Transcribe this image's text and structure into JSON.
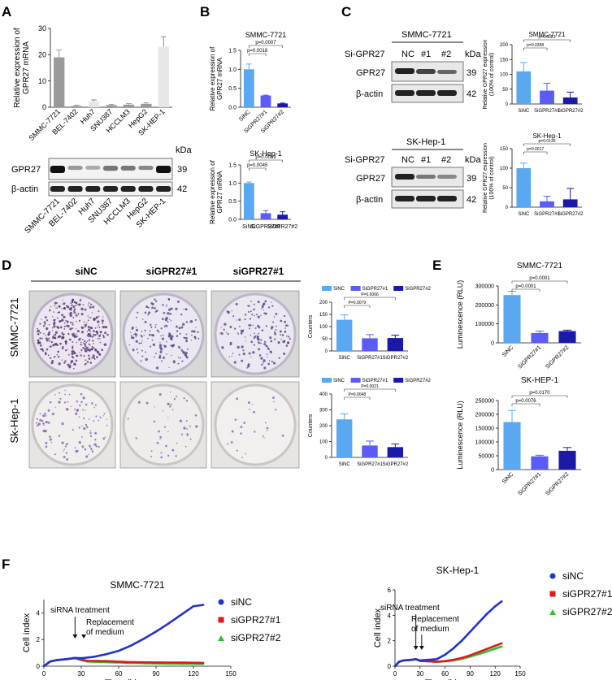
{
  "panel_letters": {
    "A": "A",
    "B": "B",
    "C": "C",
    "D": "D",
    "E": "E",
    "F": "F"
  },
  "colors": {
    "sinc": "#5aa8f0",
    "si1": "#5b5bf5",
    "si2": "#1a1aa6",
    "gray": "#9a9a9a",
    "light": "#e6e6e6",
    "f_sinc": "#2233cc",
    "f_si1": "#dd1b1b",
    "f_si2": "#2fbf2f"
  },
  "panel_a": {
    "blot": {
      "kda_label": "kDa",
      "rows": [
        {
          "name": "GPR27",
          "kda": "39"
        },
        {
          "name": "β-actin",
          "kda": "42"
        }
      ]
    }
  },
  "panel_b_blot_free": {},
  "panel_c": {
    "blots": [
      {
        "cell": "SMMC-7721",
        "si_label": "Si-GPR27",
        "lanes": [
          "NC",
          "#1",
          "#2"
        ],
        "kda_label": "kDa",
        "rows": [
          {
            "name": "GPR27",
            "kda": "39"
          },
          {
            "name": "β-actin",
            "kda": "42"
          }
        ]
      },
      {
        "cell": "SK-Hep-1",
        "si_label": "Si-GPR27",
        "lanes": [
          "NC",
          "#1",
          "#2"
        ],
        "kda_label": "kDa",
        "rows": [
          {
            "name": "GPR27",
            "kda": "39"
          },
          {
            "name": "β-actin",
            "kda": "42"
          }
        ]
      }
    ]
  },
  "panel_d": {
    "column_labels": [
      "siNC",
      "siGPR27#1",
      "siGPR27#1"
    ],
    "row_labels": [
      "SMMC-7721",
      "Sk-Hep-1"
    ]
  },
  "panel_f_annotations": {
    "treatment": "siRNA treatment",
    "replacement_1": "Replacement",
    "replacement_2": "of medium"
  },
  "chart_data": [
    {
      "id": "A",
      "type": "bar",
      "ylabel": "Relative expression of GPR27 mRNA",
      "ylim": [
        0,
        30
      ],
      "yticks": [
        0,
        10,
        20,
        30
      ],
      "categories": [
        "SMMC-7721",
        "BEL-7402",
        "Huh7",
        "SNU387",
        "HCCLM3",
        "HepG2",
        "SK-HEP-1"
      ],
      "values": [
        19,
        0.5,
        2.2,
        0.8,
        1.0,
        1.3,
        23
      ],
      "errors": [
        2.8,
        0.3,
        0.6,
        0.3,
        0.4,
        0.4,
        3.8
      ],
      "bar_colors": [
        "gray",
        "gray",
        "light",
        "gray",
        "gray",
        "gray",
        "light"
      ]
    },
    {
      "id": "B1",
      "type": "bar",
      "title": "SMMC-7721",
      "ylabel": "Relative expression of GPR27 mRNA",
      "ylim": [
        0,
        1.5
      ],
      "yticks": [
        0.0,
        0.5,
        1.0,
        1.5
      ],
      "categories": [
        "SiNC",
        "SiGPR27#1",
        "SiGPR27#2"
      ],
      "values": [
        1.0,
        0.31,
        0.1
      ],
      "errors": [
        0.14,
        0.01,
        0.01
      ],
      "bar_colors": [
        "sinc",
        "si1",
        "si2"
      ],
      "annotations": [
        {
          "text": "p=0.0018",
          "from": 0,
          "to": 1
        },
        {
          "text": "p=0.0007",
          "from": 0,
          "to": 2
        }
      ]
    },
    {
      "id": "B2",
      "type": "bar",
      "title": "SK-Hep-1",
      "ylabel": "Relative expression of GPR27 mRNA",
      "ylim": [
        0,
        1.5
      ],
      "yticks": [
        0.0,
        0.5,
        1.0,
        1.5
      ],
      "categories": [
        "SiNC",
        "SiGPR27#1",
        "SiGPR27#2"
      ],
      "values": [
        1.0,
        0.17,
        0.13
      ],
      "errors": [
        0.03,
        0.07,
        0.08
      ],
      "bar_colors": [
        "sinc",
        "si1",
        "si2"
      ],
      "annotations": [
        {
          "text": "p=0.0045",
          "from": 0,
          "to": 1
        },
        {
          "text": "p=0.0059",
          "from": 0,
          "to": 2
        }
      ]
    },
    {
      "id": "C1",
      "type": "bar",
      "title": "SMMC-7721",
      "ylabel": "Relative GPR27 expression (100% of control)",
      "ylim": [
        0,
        200
      ],
      "yticks": [
        0,
        50,
        100,
        150,
        200
      ],
      "categories": [
        "SiNC",
        "SiGPR27#1",
        "SiGPR27#2"
      ],
      "values": [
        110,
        45,
        22
      ],
      "errors": [
        30,
        25,
        18
      ],
      "bar_colors": [
        "sinc",
        "si1",
        "si2"
      ],
      "annotations": [
        {
          "text": "p=0.0358",
          "from": 0,
          "to": 1
        },
        {
          "text": "p=0.0081",
          "from": 0,
          "to": 2
        }
      ]
    },
    {
      "id": "C2",
      "type": "bar",
      "title": "SK-Hep-1",
      "ylabel": "Relative GPR27 expression (100% of control)",
      "ylim": [
        0,
        150
      ],
      "yticks": [
        0,
        50,
        100,
        150
      ],
      "categories": [
        "SiNC",
        "SiGPR27#1",
        "SiGPR27#2"
      ],
      "values": [
        100,
        15,
        20
      ],
      "errors": [
        13,
        13,
        28
      ],
      "bar_colors": [
        "sinc",
        "si1",
        "si2"
      ],
      "annotations": [
        {
          "text": "p=0.0017",
          "from": 0,
          "to": 1
        },
        {
          "text": "p=0.0136",
          "from": 0,
          "to": 2
        }
      ]
    },
    {
      "id": "D1",
      "type": "bar",
      "ylabel": "Counters",
      "ylim": [
        0,
        200
      ],
      "yticks": [
        0,
        50,
        100,
        150,
        200
      ],
      "legend": [
        "SiNC",
        "SiGPR27#1",
        "SiGPR27#2"
      ],
      "categories": [
        "SiNC",
        "SiGPR27#1",
        "SiGPR27#2"
      ],
      "values": [
        128,
        52,
        53
      ],
      "errors": [
        20,
        15,
        12
      ],
      "bar_colors": [
        "sinc",
        "si1",
        "si2"
      ],
      "annotations": [
        {
          "text": "P=0.0079",
          "from": 0,
          "to": 1
        },
        {
          "text": "P=0.0066",
          "from": 0,
          "to": 2
        }
      ]
    },
    {
      "id": "D2",
      "type": "bar",
      "ylabel": "Counters",
      "ylim": [
        0,
        400
      ],
      "yticks": [
        0,
        100,
        200,
        300,
        400
      ],
      "legend": [
        "SiNC",
        "SiGPR27#1",
        "SiGPR27#2"
      ],
      "categories": [
        "SiNC",
        "SiGPR27#1",
        "SiGPR27#2"
      ],
      "values": [
        240,
        75,
        65
      ],
      "errors": [
        35,
        28,
        20
      ],
      "bar_colors": [
        "sinc",
        "si1",
        "si2"
      ],
      "annotations": [
        {
          "text": "P=0.0048",
          "from": 0,
          "to": 1
        },
        {
          "text": "P=0.0021",
          "from": 0,
          "to": 2
        }
      ]
    },
    {
      "id": "E1",
      "type": "bar",
      "title": "SMMC-7721",
      "ylabel": "Luminescence (RLU)",
      "ylim": [
        0,
        300000
      ],
      "yticks": [
        0,
        100000,
        200000,
        300000
      ],
      "categories": [
        "SiNC",
        "SiGPR27#1",
        "SiGPR27#2"
      ],
      "values": [
        252000,
        52000,
        62000
      ],
      "errors": [
        20000,
        10000,
        5000
      ],
      "bar_colors": [
        "sinc",
        "si1",
        "si2"
      ],
      "annotations": [
        {
          "text": "p=0.0001",
          "from": 0,
          "to": 1
        },
        {
          "text": "p=0.0001",
          "from": 0,
          "to": 2
        }
      ]
    },
    {
      "id": "E2",
      "type": "bar",
      "title": "SK-HEP-1",
      "ylabel": "Luminescence (RLU)",
      "ylim": [
        0,
        250000
      ],
      "yticks": [
        0,
        50000,
        100000,
        150000,
        200000,
        250000
      ],
      "categories": [
        "SiNC",
        "SiGPR27#1",
        "SiGPR27#2"
      ],
      "values": [
        172000,
        48000,
        68000
      ],
      "errors": [
        42000,
        4000,
        12000
      ],
      "bar_colors": [
        "sinc",
        "si1",
        "si2"
      ],
      "annotations": [
        {
          "text": "p=0.0076",
          "from": 0,
          "to": 1
        },
        {
          "text": "p=0.0170",
          "from": 0,
          "to": 2
        }
      ]
    },
    {
      "id": "F1",
      "type": "scatter",
      "title": "SMMC-7721",
      "xlabel": "Time (h)",
      "ylabel": "Cell index",
      "xlim": [
        0,
        150
      ],
      "ylim": [
        0,
        5
      ],
      "xticks": [
        0,
        30,
        60,
        90,
        120,
        150
      ],
      "yticks": [
        0,
        2,
        4
      ],
      "series": [
        {
          "name": "siNC",
          "color": "f_sinc",
          "points": [
            [
              0,
              0
            ],
            [
              5,
              0.35
            ],
            [
              10,
              0.45
            ],
            [
              20,
              0.55
            ],
            [
              25,
              0.62
            ],
            [
              30,
              0.6
            ],
            [
              40,
              0.7
            ],
            [
              50,
              0.9
            ],
            [
              60,
              1.15
            ],
            [
              70,
              1.55
            ],
            [
              80,
              2.05
            ],
            [
              90,
              2.6
            ],
            [
              100,
              3.2
            ],
            [
              110,
              3.85
            ],
            [
              120,
              4.5
            ],
            [
              128,
              4.6
            ]
          ]
        },
        {
          "name": "siGPR27#1",
          "color": "f_si1",
          "points": [
            [
              0,
              0
            ],
            [
              5,
              0.35
            ],
            [
              10,
              0.45
            ],
            [
              20,
              0.55
            ],
            [
              25,
              0.62
            ],
            [
              30,
              0.5
            ],
            [
              35,
              0.4
            ],
            [
              50,
              0.38
            ],
            [
              70,
              0.3
            ],
            [
              90,
              0.28
            ],
            [
              110,
              0.27
            ],
            [
              128,
              0.25
            ]
          ]
        },
        {
          "name": "siGPR27#2",
          "color": "f_si2",
          "points": [
            [
              0,
              0
            ],
            [
              5,
              0.35
            ],
            [
              10,
              0.45
            ],
            [
              20,
              0.55
            ],
            [
              25,
              0.6
            ],
            [
              30,
              0.45
            ],
            [
              35,
              0.35
            ],
            [
              50,
              0.3
            ],
            [
              70,
              0.25
            ],
            [
              90,
              0.2
            ],
            [
              110,
              0.18
            ],
            [
              128,
              0.17
            ]
          ]
        }
      ]
    },
    {
      "id": "F2",
      "type": "scatter",
      "title": "SK-Hep-1",
      "xlabel": "Time (h)",
      "ylabel": "Cell index",
      "xlim": [
        0,
        150
      ],
      "ylim": [
        0,
        6
      ],
      "xticks": [
        0,
        30,
        60,
        90,
        120,
        150
      ],
      "yticks": [
        0,
        2,
        4,
        6
      ],
      "series": [
        {
          "name": "siNC",
          "color": "f_sinc",
          "points": [
            [
              0,
              0
            ],
            [
              5,
              0.35
            ],
            [
              10,
              0.45
            ],
            [
              20,
              0.5
            ],
            [
              25,
              0.55
            ],
            [
              30,
              0.45
            ],
            [
              40,
              0.5
            ],
            [
              50,
              0.55
            ],
            [
              60,
              0.9
            ],
            [
              70,
              1.4
            ],
            [
              80,
              2.0
            ],
            [
              90,
              2.7
            ],
            [
              100,
              3.4
            ],
            [
              110,
              4.1
            ],
            [
              120,
              4.7
            ],
            [
              128,
              5.1
            ]
          ]
        },
        {
          "name": "siGPR27#1",
          "color": "f_si1",
          "points": [
            [
              0,
              0
            ],
            [
              5,
              0.35
            ],
            [
              10,
              0.45
            ],
            [
              20,
              0.5
            ],
            [
              25,
              0.55
            ],
            [
              30,
              0.42
            ],
            [
              40,
              0.38
            ],
            [
              50,
              0.35
            ],
            [
              60,
              0.4
            ],
            [
              70,
              0.5
            ],
            [
              80,
              0.65
            ],
            [
              90,
              0.85
            ],
            [
              100,
              1.1
            ],
            [
              110,
              1.35
            ],
            [
              120,
              1.6
            ],
            [
              128,
              1.8
            ]
          ]
        },
        {
          "name": "siGPR27#2",
          "color": "f_si2",
          "points": [
            [
              0,
              0
            ],
            [
              5,
              0.35
            ],
            [
              10,
              0.45
            ],
            [
              20,
              0.5
            ],
            [
              25,
              0.55
            ],
            [
              30,
              0.42
            ],
            [
              40,
              0.38
            ],
            [
              50,
              0.35
            ],
            [
              60,
              0.38
            ],
            [
              70,
              0.45
            ],
            [
              80,
              0.58
            ],
            [
              90,
              0.75
            ],
            [
              100,
              0.95
            ],
            [
              110,
              1.15
            ],
            [
              120,
              1.38
            ],
            [
              128,
              1.55
            ]
          ]
        }
      ]
    }
  ]
}
